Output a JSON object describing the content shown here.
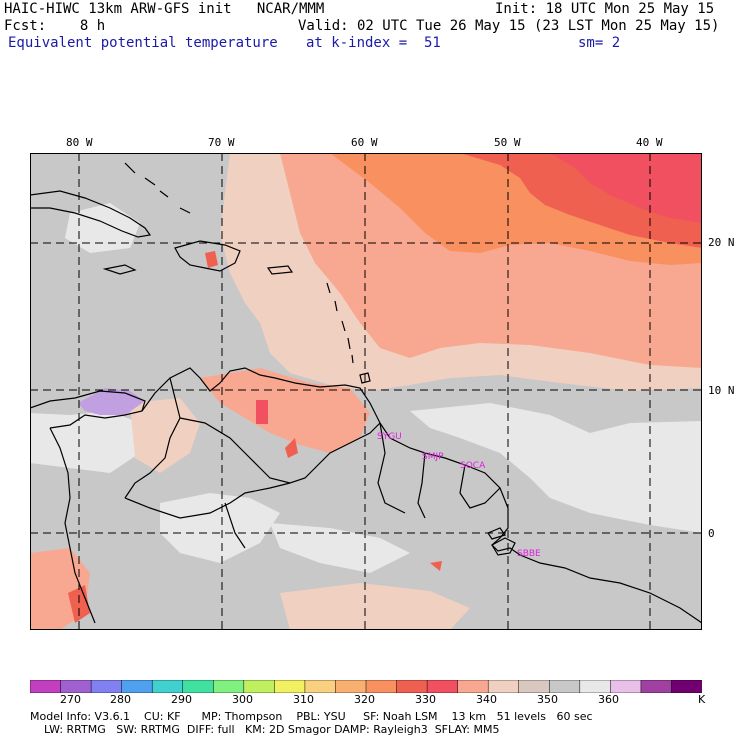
{
  "header": {
    "title_left": "HAIC-HIWC 13km ARW-GFS init   NCAR/MMM",
    "init": "Init: 18 UTC Mon 25 May 15",
    "fcst": "Fcst:    8 h",
    "valid": "Valid: 02 UTC Tue 26 May 15 (23 LST Mon 25 May 15)",
    "field": "Equivalent potential temperature",
    "level": "at k-index =  51",
    "smooth": "sm= 2"
  },
  "axes": {
    "lon_labels": [
      "80 W",
      "70 W",
      "60 W",
      "50 W",
      "40 W"
    ],
    "lat_labels": [
      "20 N",
      "10 N",
      "0"
    ]
  },
  "stations": [
    {
      "id": "SYGU",
      "label": "SYGU"
    },
    {
      "id": "SMJP",
      "label": "SMJP"
    },
    {
      "id": "SOCA",
      "label": "SOCA"
    },
    {
      "id": "SBBE",
      "label": "SBBE"
    }
  ],
  "colorbar": {
    "labels": [
      "270",
      "280",
      "290",
      "300",
      "310",
      "320",
      "330",
      "340",
      "350",
      "360",
      "K"
    ],
    "colors": [
      "#c040c0",
      "#a060d0",
      "#8080f0",
      "#50a0f0",
      "#40d0d0",
      "#40e0a0",
      "#80f080",
      "#c0f060",
      "#f0f060",
      "#f8d080",
      "#f8b070",
      "#f89060",
      "#f06050",
      "#f05060",
      "#f8a890",
      "#f0d0c0",
      "#d8c8c0",
      "#c8c8c8",
      "#e8e8e8",
      "#e8c0e8",
      "#a040a0",
      "#700070"
    ]
  },
  "footer": {
    "line1": "Model Info: V3.6.1    CU: KF      MP: Thompson    PBL: YSU     SF: Noah LSM    13 km   51 levels   60 sec",
    "line2": "    LW: RRTMG   SW: RRTMG  DIFF: full   KM: 2D Smagor DAMP: Rayleigh3  SFLAY: MM5"
  }
}
